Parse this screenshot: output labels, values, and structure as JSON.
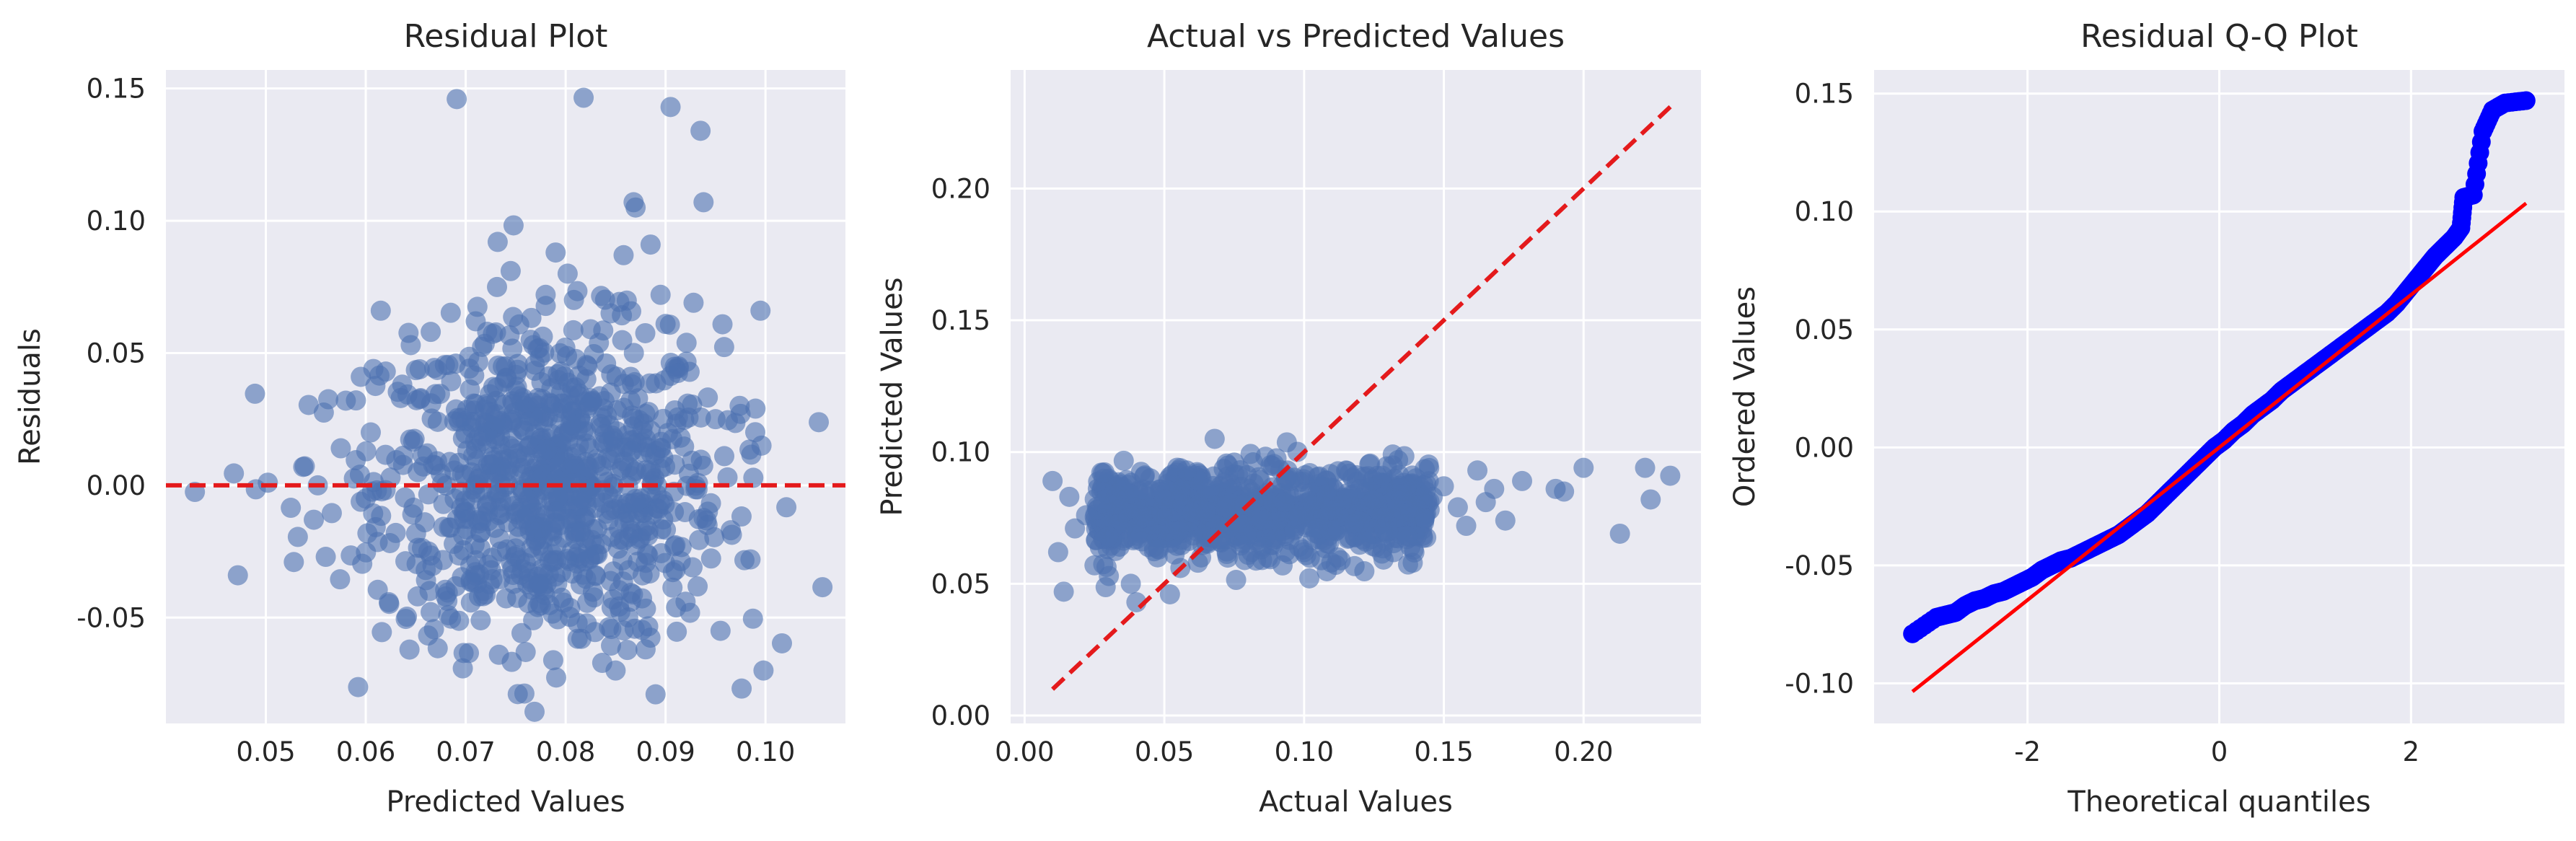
{
  "chart_data": [
    {
      "type": "scatter",
      "title": "Residual Plot",
      "xlabel": "Predicted Values",
      "ylabel": "Residuals",
      "xlim": [
        0.04,
        0.108
      ],
      "ylim": [
        -0.09,
        0.157
      ],
      "xticks": [
        0.05,
        0.06,
        0.07,
        0.08,
        0.09,
        0.1
      ],
      "xtick_labels": [
        "0.05",
        "0.06",
        "0.07",
        "0.08",
        "0.09",
        "0.10"
      ],
      "yticks": [
        -0.05,
        0.0,
        0.05,
        0.1,
        0.15
      ],
      "ytick_labels": [
        "-0.05",
        "0.00",
        "0.05",
        "0.10",
        "0.15"
      ],
      "grid": true,
      "point_color": "#4c72b0",
      "reference_line": {
        "y": 0.0,
        "style": "dashed",
        "color": "#e41a1c"
      },
      "points": [
        [
          0.0429,
          -0.0025
        ],
        [
          0.0468,
          0.0045
        ],
        [
          0.0472,
          -0.034
        ],
        [
          0.049,
          -0.0015
        ],
        [
          0.0502,
          0.001
        ],
        [
          0.0525,
          -0.0085
        ],
        [
          0.0528,
          -0.029
        ],
        [
          0.0532,
          -0.0195
        ],
        [
          0.0548,
          -0.013
        ],
        [
          0.0552,
          0.0
        ],
        [
          0.0558,
          0.0275
        ],
        [
          0.0566,
          -0.0105
        ],
        [
          0.0575,
          0.014
        ],
        [
          0.058,
          0.032
        ],
        [
          0.0585,
          -0.0265
        ],
        [
          0.059,
          0.0095
        ],
        [
          0.0595,
          0.041
        ],
        [
          0.06,
          -0.005
        ],
        [
          0.0605,
          0.02
        ],
        [
          0.0612,
          -0.0395
        ],
        [
          0.0615,
          0.066
        ],
        [
          0.062,
          0.043
        ],
        [
          0.063,
          -0.018
        ],
        [
          0.0635,
          0.033
        ],
        [
          0.064,
          -0.0505
        ],
        [
          0.0645,
          0.053
        ],
        [
          0.0652,
          0.005
        ],
        [
          0.066,
          -0.032
        ],
        [
          0.0665,
          0.058
        ],
        [
          0.0672,
          0.024
        ],
        [
          0.068,
          -0.042
        ],
        [
          0.069,
          0.046
        ],
        [
          0.0691,
          0.146
        ],
        [
          0.07,
          -0.01
        ],
        [
          0.071,
          0.062
        ],
        [
          0.0715,
          -0.051
        ],
        [
          0.0722,
          0.03
        ],
        [
          0.0732,
          0.092
        ],
        [
          0.0735,
          -0.025
        ],
        [
          0.0745,
          0.081
        ],
        [
          0.0752,
          0.012
        ],
        [
          0.076,
          -0.063
        ],
        [
          0.0765,
          0.055
        ],
        [
          0.0772,
          -0.046
        ],
        [
          0.078,
          0.072
        ],
        [
          0.079,
          0.088
        ],
        [
          0.0795,
          -0.015
        ],
        [
          0.0802,
          0.08
        ],
        [
          0.081,
          0.037
        ],
        [
          0.0812,
          -0.058
        ],
        [
          0.0818,
          0.1465
        ],
        [
          0.0825,
          0.059
        ],
        [
          0.083,
          -0.034
        ],
        [
          0.0838,
          0.029
        ],
        [
          0.0845,
          0.065
        ],
        [
          0.085,
          -0.07
        ],
        [
          0.0858,
          0.087
        ],
        [
          0.0865,
          0.041
        ],
        [
          0.0868,
          0.107
        ],
        [
          0.087,
          0.105
        ],
        [
          0.0875,
          -0.005
        ],
        [
          0.088,
          -0.062
        ],
        [
          0.0885,
          0.091
        ],
        [
          0.089,
          -0.079
        ],
        [
          0.0895,
          0.072
        ],
        [
          0.09,
          0.061
        ],
        [
          0.0905,
          0.143
        ],
        [
          0.091,
          -0.032
        ],
        [
          0.0915,
          0.018
        ],
        [
          0.092,
          -0.044
        ],
        [
          0.0928,
          0.069
        ],
        [
          0.0935,
          0.134
        ],
        [
          0.0938,
          0.107
        ],
        [
          0.0942,
          -0.015
        ],
        [
          0.095,
          0.025
        ],
        [
          0.0955,
          -0.055
        ],
        [
          0.0962,
          0.003
        ],
        [
          0.0975,
          0.027
        ],
        [
          0.0985,
          -0.028
        ],
        [
          0.099,
          0.029
        ],
        [
          0.0995,
          0.066
        ],
        [
          0.0998,
          -0.07
        ],
        [
          0.0996,
          0.015
        ],
        [
          0.1057,
          -0.0385
        ]
      ]
    },
    {
      "type": "scatter",
      "title": "Actual vs Predicted Values",
      "xlabel": "Actual Values",
      "ylabel": "Predicted Values",
      "xlim": [
        -0.005,
        0.242
      ],
      "ylim": [
        -0.003,
        0.245
      ],
      "xticks": [
        0.0,
        0.05,
        0.1,
        0.15,
        0.2
      ],
      "xtick_labels": [
        "0.00",
        "0.05",
        "0.10",
        "0.15",
        "0.20"
      ],
      "yticks": [
        0.0,
        0.05,
        0.1,
        0.15,
        0.2
      ],
      "ytick_labels": [
        "0.00",
        "0.05",
        "0.10",
        "0.15",
        "0.20"
      ],
      "grid": true,
      "point_color": "#4c72b0",
      "reference_line": {
        "from": [
          0.01,
          0.01
        ],
        "to": [
          0.232,
          0.232
        ],
        "style": "dashed",
        "color": "#e41a1c"
      },
      "points": [
        [
          0.01,
          0.089
        ],
        [
          0.012,
          0.062
        ],
        [
          0.014,
          0.047
        ],
        [
          0.016,
          0.083
        ],
        [
          0.018,
          0.071
        ],
        [
          0.022,
          0.076
        ],
        [
          0.025,
          0.057
        ],
        [
          0.028,
          0.092
        ],
        [
          0.03,
          0.068
        ],
        [
          0.032,
          0.08
        ],
        [
          0.035,
          0.086
        ],
        [
          0.038,
          0.05
        ],
        [
          0.04,
          0.043
        ],
        [
          0.042,
          0.075
        ],
        [
          0.045,
          0.09
        ],
        [
          0.048,
          0.063
        ],
        [
          0.05,
          0.082
        ],
        [
          0.052,
          0.046
        ],
        [
          0.055,
          0.07
        ],
        [
          0.058,
          0.093
        ],
        [
          0.06,
          0.077
        ],
        [
          0.062,
          0.058
        ],
        [
          0.065,
          0.086
        ],
        [
          0.068,
          0.105
        ],
        [
          0.07,
          0.066
        ],
        [
          0.072,
          0.079
        ],
        [
          0.075,
          0.096
        ],
        [
          0.078,
          0.072
        ],
        [
          0.08,
          0.061
        ],
        [
          0.082,
          0.088
        ],
        [
          0.085,
          0.074
        ],
        [
          0.088,
          0.095
        ],
        [
          0.09,
          0.067
        ],
        [
          0.093,
          0.081
        ],
        [
          0.095,
          0.089
        ],
        [
          0.098,
          0.076
        ],
        [
          0.1,
          0.062
        ],
        [
          0.102,
          0.092
        ],
        [
          0.105,
          0.071
        ],
        [
          0.108,
          0.084
        ],
        [
          0.11,
          0.078
        ],
        [
          0.112,
          0.06
        ],
        [
          0.115,
          0.093
        ],
        [
          0.118,
          0.073
        ],
        [
          0.12,
          0.086
        ],
        [
          0.122,
          0.066
        ],
        [
          0.125,
          0.082
        ],
        [
          0.128,
          0.091
        ],
        [
          0.13,
          0.07
        ],
        [
          0.132,
          0.062
        ],
        [
          0.135,
          0.084
        ],
        [
          0.138,
          0.077
        ],
        [
          0.14,
          0.09
        ],
        [
          0.143,
          0.075
        ],
        [
          0.146,
          0.083
        ],
        [
          0.15,
          0.087
        ],
        [
          0.155,
          0.079
        ],
        [
          0.158,
          0.072
        ],
        [
          0.162,
          0.093
        ],
        [
          0.165,
          0.081
        ],
        [
          0.168,
          0.086
        ],
        [
          0.172,
          0.074
        ],
        [
          0.178,
          0.089
        ],
        [
          0.19,
          0.086
        ],
        [
          0.193,
          0.085
        ],
        [
          0.2,
          0.094
        ],
        [
          0.213,
          0.069
        ],
        [
          0.222,
          0.094
        ],
        [
          0.224,
          0.082
        ],
        [
          0.231,
          0.091
        ]
      ],
      "dense_cluster": {
        "x": [
          0.025,
          0.145
        ],
        "y": [
          0.062,
          0.092
        ],
        "center_y": 0.077
      }
    },
    {
      "type": "scatter",
      "title": "Residual Q-Q Plot",
      "xlabel": "Theoretical quantiles",
      "ylabel": "Ordered Values",
      "xlim": [
        -3.6,
        3.6
      ],
      "ylim": [
        -0.117,
        0.16
      ],
      "xticks": [
        -2,
        0,
        2
      ],
      "xtick_labels": [
        "-2",
        "0",
        "2"
      ],
      "yticks": [
        -0.1,
        -0.05,
        0.0,
        0.05,
        0.1,
        0.15
      ],
      "ytick_labels": [
        "-0.10",
        "-0.05",
        "0.00",
        "0.05",
        "0.10",
        "0.15"
      ],
      "grid": true,
      "point_color": "#0000ff",
      "fit_line": {
        "from": [
          -3.2,
          -0.1035
        ],
        "to": [
          3.2,
          0.1035
        ],
        "color": "#ff0000"
      },
      "points": [
        [
          -3.2,
          -0.079
        ],
        [
          -2.95,
          -0.072
        ],
        [
          -2.85,
          -0.071
        ],
        [
          -2.75,
          -0.07
        ],
        [
          -2.65,
          -0.067
        ],
        [
          -2.55,
          -0.065
        ],
        [
          -2.45,
          -0.064
        ],
        [
          -2.35,
          -0.062
        ],
        [
          -2.25,
          -0.061
        ],
        [
          -2.15,
          -0.059
        ],
        [
          -2.05,
          -0.057
        ],
        [
          -1.95,
          -0.055
        ],
        [
          -1.85,
          -0.052
        ],
        [
          -1.75,
          -0.05
        ],
        [
          -1.65,
          -0.048
        ],
        [
          -1.55,
          -0.047
        ],
        [
          -1.45,
          -0.045
        ],
        [
          -1.35,
          -0.043
        ],
        [
          -1.25,
          -0.041
        ],
        [
          -1.15,
          -0.039
        ],
        [
          -1.05,
          -0.037
        ],
        [
          -0.95,
          -0.034
        ],
        [
          -0.85,
          -0.031
        ],
        [
          -0.75,
          -0.028
        ],
        [
          -0.65,
          -0.024
        ],
        [
          -0.55,
          -0.02
        ],
        [
          -0.45,
          -0.016
        ],
        [
          -0.35,
          -0.012
        ],
        [
          -0.25,
          -0.008
        ],
        [
          -0.15,
          -0.004
        ],
        [
          -0.05,
          0.0
        ],
        [
          0.05,
          0.003
        ],
        [
          0.15,
          0.007
        ],
        [
          0.25,
          0.01
        ],
        [
          0.35,
          0.014
        ],
        [
          0.45,
          0.017
        ],
        [
          0.55,
          0.02
        ],
        [
          0.65,
          0.024
        ],
        [
          0.75,
          0.027
        ],
        [
          0.85,
          0.03
        ],
        [
          0.95,
          0.033
        ],
        [
          1.05,
          0.036
        ],
        [
          1.15,
          0.039
        ],
        [
          1.25,
          0.042
        ],
        [
          1.35,
          0.045
        ],
        [
          1.45,
          0.048
        ],
        [
          1.55,
          0.051
        ],
        [
          1.65,
          0.054
        ],
        [
          1.75,
          0.057
        ],
        [
          1.85,
          0.061
        ],
        [
          1.95,
          0.066
        ],
        [
          2.05,
          0.071
        ],
        [
          2.15,
          0.076
        ],
        [
          2.25,
          0.081
        ],
        [
          2.35,
          0.085
        ],
        [
          2.45,
          0.089
        ],
        [
          2.52,
          0.093
        ],
        [
          2.55,
          0.106
        ],
        [
          2.65,
          0.107
        ],
        [
          2.75,
          0.134
        ],
        [
          2.85,
          0.143
        ],
        [
          2.98,
          0.146
        ],
        [
          3.2,
          0.147
        ]
      ]
    }
  ]
}
